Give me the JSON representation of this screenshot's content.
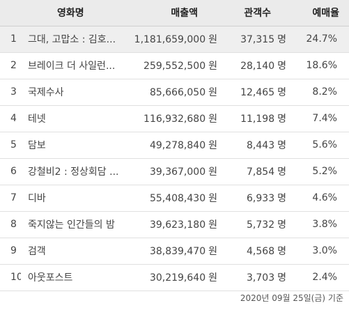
{
  "headers": {
    "title": "영화명",
    "sales": "매출액",
    "audience": "관객수",
    "rate": "예매율"
  },
  "units": {
    "won": "원",
    "people": "명"
  },
  "rows": [
    {
      "rank": "1",
      "title": "그대, 고맙소 : 김호...",
      "sales": "1,181,659,000",
      "audience": "37,315",
      "rate": "24.7%"
    },
    {
      "rank": "2",
      "title": "브레이크 더 사일런...",
      "sales": "259,552,500",
      "audience": "28,140",
      "rate": "18.6%"
    },
    {
      "rank": "3",
      "title": "국제수사",
      "sales": "85,666,050",
      "audience": "12,465",
      "rate": "8.2%"
    },
    {
      "rank": "4",
      "title": "테넷",
      "sales": "116,932,680",
      "audience": "11,198",
      "rate": "7.4%"
    },
    {
      "rank": "5",
      "title": "담보",
      "sales": "49,278,840",
      "audience": "8,443",
      "rate": "5.6%"
    },
    {
      "rank": "6",
      "title": "강철비2 : 정상회담 ...",
      "sales": "39,367,000",
      "audience": "7,854",
      "rate": "5.2%"
    },
    {
      "rank": "7",
      "title": "디바",
      "sales": "55,408,430",
      "audience": "6,933",
      "rate": "4.6%"
    },
    {
      "rank": "8",
      "title": "죽지않는 인간들의 밤",
      "sales": "39,623,180",
      "audience": "5,732",
      "rate": "3.8%"
    },
    {
      "rank": "9",
      "title": "검객",
      "sales": "38,839,470",
      "audience": "4,568",
      "rate": "3.0%"
    },
    {
      "rank": "10",
      "title": "아웃포스트",
      "sales": "30,219,640",
      "audience": "3,703",
      "rate": "2.4%"
    }
  ],
  "footnote": "2020년 09월 25일(금) 기준"
}
